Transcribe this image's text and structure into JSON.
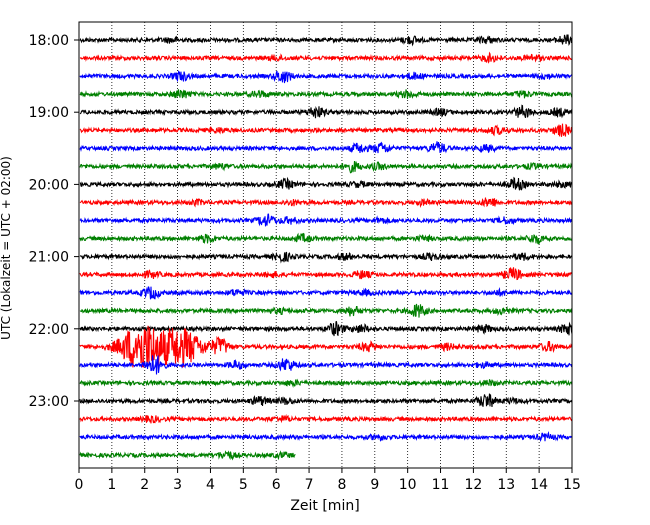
{
  "chart_data": {
    "type": "line",
    "title": "",
    "xlabel": "Zeit  [min]",
    "ylabel": "UTC (Lokalzeit = UTC + 02:00)",
    "xlim": [
      0,
      15
    ],
    "x_ticks": [
      "0",
      "1",
      "2",
      "3",
      "4",
      "5",
      "6",
      "7",
      "8",
      "9",
      "10",
      "11",
      "12",
      "13",
      "14",
      "15"
    ],
    "y_ticks": [
      "18:00",
      "19:00",
      "20:00",
      "21:00",
      "22:00",
      "23:00"
    ],
    "grid": "vertical-dotted",
    "rows_per_hour": 4,
    "trace_colors": [
      "#000000",
      "#ff0000",
      "#0000ff",
      "#008000"
    ],
    "traces": [
      {
        "start": "18:00",
        "duration_min": 15,
        "events": [
          [
            10.1,
            0.5
          ],
          [
            12.4,
            0.4
          ],
          [
            14.8,
            0.6
          ],
          [
            2.8,
            0.3
          ]
        ]
      },
      {
        "start": "18:15",
        "duration_min": 15,
        "events": [
          [
            12.5,
            0.5
          ],
          [
            13.8,
            0.4
          ],
          [
            6.0,
            0.3
          ]
        ]
      },
      {
        "start": "18:30",
        "duration_min": 15,
        "events": [
          [
            3.1,
            0.6
          ],
          [
            6.2,
            0.9
          ],
          [
            10.2,
            0.4
          ],
          [
            14.2,
            0.3
          ]
        ]
      },
      {
        "start": "18:45",
        "duration_min": 15,
        "events": [
          [
            3.1,
            0.6
          ],
          [
            5.5,
            0.4
          ],
          [
            10.0,
            0.5
          ],
          [
            13.5,
            0.4
          ]
        ]
      },
      {
        "start": "19:00",
        "duration_min": 15,
        "events": [
          [
            7.2,
            0.8
          ],
          [
            11.0,
            0.4
          ],
          [
            13.5,
            0.8
          ],
          [
            14.6,
            0.5
          ]
        ]
      },
      {
        "start": "19:15",
        "duration_min": 15,
        "events": [
          [
            4.2,
            0.3
          ],
          [
            12.7,
            0.5
          ],
          [
            14.7,
            0.8
          ]
        ]
      },
      {
        "start": "19:30",
        "duration_min": 15,
        "events": [
          [
            8.5,
            0.6
          ],
          [
            9.2,
            0.7
          ],
          [
            10.9,
            0.8
          ],
          [
            12.4,
            0.4
          ]
        ]
      },
      {
        "start": "19:45",
        "duration_min": 15,
        "events": [
          [
            4.3,
            0.3
          ],
          [
            8.3,
            0.7
          ],
          [
            9.1,
            0.4
          ],
          [
            13.8,
            0.3
          ]
        ]
      },
      {
        "start": "20:00",
        "duration_min": 15,
        "events": [
          [
            6.3,
            0.6
          ],
          [
            8.5,
            0.3
          ],
          [
            13.3,
            0.8
          ],
          [
            14.7,
            0.3
          ]
        ]
      },
      {
        "start": "20:15",
        "duration_min": 15,
        "events": [
          [
            3.6,
            0.3
          ],
          [
            6.5,
            0.3
          ],
          [
            10.5,
            0.3
          ],
          [
            12.5,
            0.6
          ]
        ]
      },
      {
        "start": "20:30",
        "duration_min": 15,
        "events": [
          [
            5.7,
            0.8
          ],
          [
            6.4,
            0.4
          ],
          [
            9.2,
            0.3
          ],
          [
            13.0,
            0.4
          ]
        ]
      },
      {
        "start": "20:45",
        "duration_min": 15,
        "events": [
          [
            3.9,
            0.5
          ],
          [
            6.8,
            0.5
          ],
          [
            10.5,
            0.3
          ],
          [
            13.9,
            0.6
          ]
        ]
      },
      {
        "start": "21:00",
        "duration_min": 15,
        "events": [
          [
            6.2,
            0.6
          ],
          [
            8.1,
            0.4
          ],
          [
            10.7,
            0.4
          ],
          [
            13.5,
            0.4
          ]
        ]
      },
      {
        "start": "21:15",
        "duration_min": 15,
        "events": [
          [
            2.2,
            0.4
          ],
          [
            5.9,
            0.3
          ],
          [
            8.6,
            0.5
          ],
          [
            13.2,
            0.9
          ]
        ]
      },
      {
        "start": "21:30",
        "duration_min": 15,
        "events": [
          [
            2.2,
            0.8
          ],
          [
            4.8,
            0.4
          ],
          [
            8.7,
            0.3
          ],
          [
            12.8,
            0.3
          ]
        ]
      },
      {
        "start": "21:45",
        "duration_min": 15,
        "events": [
          [
            6.1,
            0.3
          ],
          [
            8.3,
            0.6
          ],
          [
            10.3,
            0.9
          ],
          [
            12.9,
            0.4
          ]
        ]
      },
      {
        "start": "22:00",
        "duration_min": 15,
        "events": [
          [
            7.8,
            0.9
          ],
          [
            8.6,
            0.5
          ],
          [
            12.3,
            0.5
          ],
          [
            14.9,
            0.8
          ]
        ]
      },
      {
        "start": "22:15",
        "duration_min": 15,
        "events": [
          [
            1.9,
            3.6
          ],
          [
            3.1,
            2.8
          ],
          [
            4.3,
            1.2
          ],
          [
            8.8,
            0.6
          ],
          [
            11.2,
            0.4
          ],
          [
            14.3,
            0.6
          ]
        ]
      },
      {
        "start": "22:30",
        "duration_min": 15,
        "events": [
          [
            2.3,
            1.4
          ],
          [
            4.8,
            0.5
          ],
          [
            6.3,
            0.9
          ],
          [
            12.3,
            0.3
          ]
        ]
      },
      {
        "start": "22:45",
        "duration_min": 15,
        "events": [
          [
            6.5,
            0.3
          ],
          [
            12.5,
            0.3
          ]
        ]
      },
      {
        "start": "23:00",
        "duration_min": 15,
        "events": [
          [
            5.5,
            0.6
          ],
          [
            6.3,
            0.4
          ],
          [
            12.4,
            1.0
          ],
          [
            13.2,
            0.3
          ]
        ]
      },
      {
        "start": "23:15",
        "duration_min": 15,
        "events": [
          [
            2.2,
            0.4
          ],
          [
            6.2,
            0.3
          ]
        ]
      },
      {
        "start": "23:30",
        "duration_min": 15,
        "events": [
          [
            9.1,
            0.3
          ],
          [
            14.2,
            0.4
          ]
        ]
      },
      {
        "start": "23:45",
        "duration_min": 6.6,
        "events": [
          [
            4.5,
            0.5
          ],
          [
            6.2,
            0.3
          ]
        ]
      }
    ]
  }
}
